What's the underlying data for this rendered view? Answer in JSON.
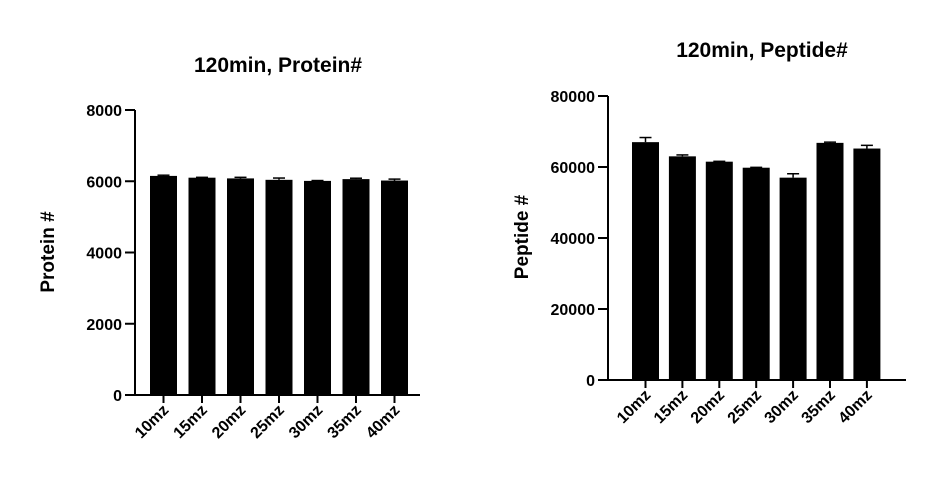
{
  "chart_data": [
    {
      "type": "bar",
      "title": "120min,  Protein#",
      "xlabel": "",
      "ylabel": "Protein #",
      "ylim": [
        0,
        8000
      ],
      "yticks": [
        "0",
        "2000",
        "4000",
        "6000",
        "8000"
      ],
      "categories": [
        "10mz",
        "15mz",
        "20mz",
        "25mz",
        "30mz",
        "35mz",
        "40mz"
      ],
      "values": [
        6150,
        6100,
        6080,
        6040,
        6010,
        6060,
        6020
      ],
      "errors": [
        20,
        10,
        30,
        50,
        10,
        25,
        40
      ],
      "bar_color": "#000000"
    },
    {
      "type": "bar",
      "title": "120min,  Peptide#",
      "xlabel": "",
      "ylabel": "Peptide #",
      "ylim": [
        0,
        80000
      ],
      "yticks": [
        "0",
        "20000",
        "40000",
        "60000",
        "80000"
      ],
      "categories": [
        "10mz",
        "15mz",
        "20mz",
        "25mz",
        "30mz",
        "35mz",
        "40mz"
      ],
      "values": [
        67000,
        63000,
        61500,
        59800,
        57000,
        66800,
        65200
      ],
      "errors": [
        1300,
        400,
        100,
        100,
        1100,
        200,
        900
      ],
      "bar_color": "#000000"
    }
  ]
}
